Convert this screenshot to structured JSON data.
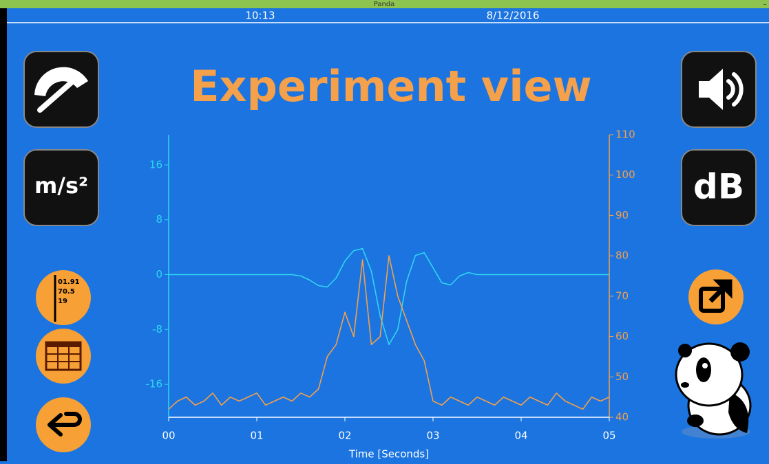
{
  "app": {
    "title": "Panda",
    "minimize": "–",
    "time": "10:13",
    "date": "8/12/2016",
    "heading": "Experiment view",
    "buttons": {
      "units_left": "m/s²",
      "units_right": "dB",
      "readout": [
        "01.91",
        "70.5",
        "19"
      ]
    }
  },
  "chart_data": {
    "type": "line",
    "x_label": "Time [Seconds]",
    "x": [
      0,
      0.1,
      0.2,
      0.3,
      0.4,
      0.5,
      0.6,
      0.7,
      0.8,
      0.9,
      1.0,
      1.1,
      1.2,
      1.3,
      1.4,
      1.5,
      1.6,
      1.7,
      1.8,
      1.9,
      2.0,
      2.1,
      2.2,
      2.3,
      2.4,
      2.5,
      2.6,
      2.7,
      2.8,
      2.9,
      3.0,
      3.1,
      3.2,
      3.3,
      3.4,
      3.5,
      3.6,
      3.7,
      3.8,
      3.9,
      4.0,
      4.1,
      4.2,
      4.3,
      4.4,
      4.5,
      4.6,
      4.7,
      4.8,
      4.9,
      5.0
    ],
    "xlim": [
      0,
      5
    ],
    "xticks": [
      {
        "value": 0,
        "label": "00"
      },
      {
        "value": 1,
        "label": "01"
      },
      {
        "value": 2,
        "label": "02"
      },
      {
        "value": 3,
        "label": "03"
      },
      {
        "value": 4,
        "label": "04"
      },
      {
        "value": 5,
        "label": "05"
      }
    ],
    "ylim": [
      -20.8,
      20.4
    ],
    "yticks": [
      -16,
      -8,
      0,
      8,
      16
    ],
    "ycolor": "#2fd6f2",
    "y2lim": [
      40,
      110
    ],
    "y2ticks": [
      40,
      50,
      60,
      70,
      80,
      90,
      100,
      110
    ],
    "y2color": "#f5a04a",
    "grid": false,
    "series": [
      {
        "color": "#2fd6f2",
        "axis": "y",
        "values": [
          0,
          0,
          0,
          0,
          0,
          0,
          0,
          0,
          0,
          0,
          0,
          0,
          0,
          0,
          0,
          -0.2,
          -0.8,
          -1.6,
          -1.8,
          -0.5,
          2.0,
          3.5,
          3.8,
          0.5,
          -6,
          -10.2,
          -8,
          -1,
          2.8,
          3.2,
          1.0,
          -1.2,
          -1.5,
          -0.2,
          0.3,
          0,
          0,
          0,
          0,
          0,
          0,
          0,
          0,
          0,
          0,
          0,
          0,
          0,
          0,
          0,
          0
        ]
      },
      {
        "color": "#f5a04a",
        "axis": "y2",
        "values": [
          42,
          44,
          45,
          43,
          44,
          46,
          43,
          45,
          44,
          45,
          46,
          43,
          44,
          45,
          44,
          46,
          45,
          47,
          55,
          58,
          66,
          60,
          79,
          58,
          60,
          80,
          70,
          64,
          58,
          54,
          44,
          43,
          45,
          44,
          43,
          45,
          44,
          43,
          45,
          44,
          43,
          45,
          44,
          43,
          46,
          44,
          43,
          42,
          45,
          44,
          45
        ]
      }
    ]
  }
}
